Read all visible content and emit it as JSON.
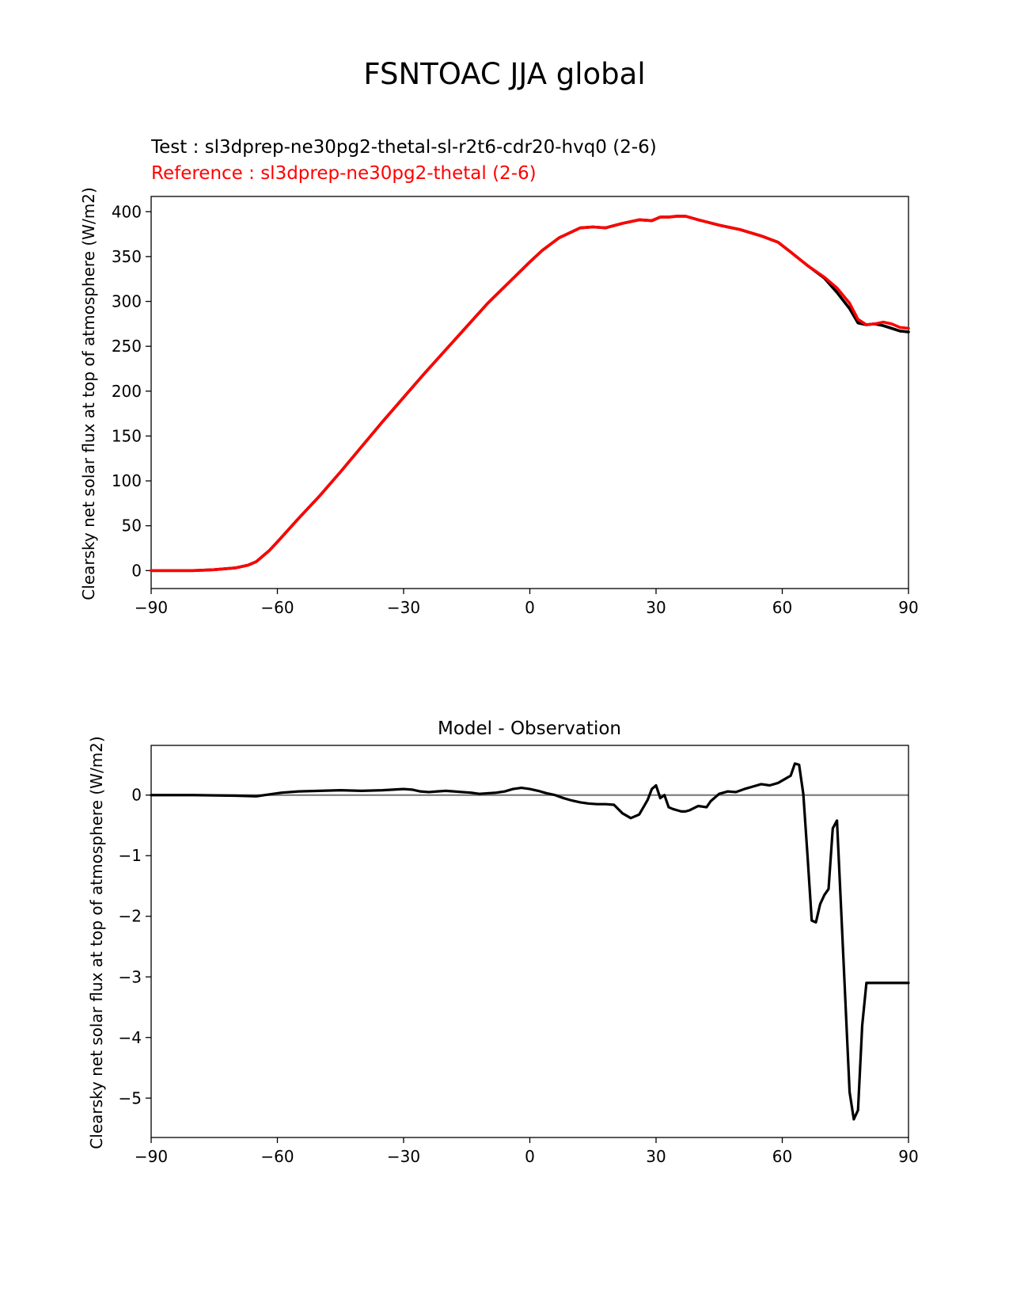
{
  "figure_title": "FSNTOAC JJA global",
  "legend": {
    "test_label": "Test : sl3dprep-ne30pg2-thetal-sl-r2t6-cdr20-hvq0 (2-6)",
    "reference_label": "Reference : sl3dprep-ne30pg2-thetal (2-6)"
  },
  "colors": {
    "test": "#000000",
    "reference": "#ff0000",
    "zero_line": "#808080"
  },
  "chart_data": [
    {
      "type": "line",
      "title": "",
      "xlabel": "",
      "ylabel": "Clearsky net solar flux at top of atmosphere (W/m2)",
      "xlim": [
        -90,
        90
      ],
      "ylim": [
        -20,
        417
      ],
      "xticks": [
        -90,
        -60,
        -30,
        0,
        30,
        60,
        90
      ],
      "xtick_labels": [
        "−90",
        "−60",
        "−30",
        "0",
        "30",
        "60",
        "90"
      ],
      "yticks": [
        0,
        50,
        100,
        150,
        200,
        250,
        300,
        350,
        400
      ],
      "ytick_labels": [
        "0",
        "50",
        "100",
        "150",
        "200",
        "250",
        "300",
        "350",
        "400"
      ],
      "x": [
        -90,
        -85,
        -80,
        -75,
        -70,
        -67,
        -65,
        -62,
        -60,
        -55,
        -50,
        -45,
        -40,
        -35,
        -30,
        -25,
        -20,
        -15,
        -10,
        -5,
        0,
        3,
        7,
        12,
        15,
        18,
        22,
        26,
        29,
        31,
        33,
        35,
        37,
        40,
        45,
        50,
        55,
        59,
        62,
        66,
        70,
        73,
        76,
        78,
        80,
        82,
        84,
        86,
        88,
        90
      ],
      "series": [
        {
          "name": "Test",
          "color": "#000000",
          "values": [
            0,
            0,
            0,
            1,
            3,
            6,
            10,
            22,
            32,
            58,
            83,
            110,
            138,
            166,
            193,
            220,
            246,
            272,
            298,
            321,
            344,
            357,
            371,
            382,
            383,
            382,
            387,
            391,
            390,
            394,
            394,
            395,
            395,
            391,
            385,
            380,
            373,
            366,
            355,
            340,
            326,
            310,
            292,
            276,
            274,
            275,
            273,
            270,
            267,
            266
          ]
        },
        {
          "name": "Reference",
          "color": "#ff0000",
          "values": [
            0,
            0,
            0,
            1,
            3,
            6,
            10,
            22,
            32,
            58,
            83,
            110,
            138,
            166,
            193,
            220,
            246,
            272,
            298,
            321,
            344,
            357,
            371,
            382,
            383,
            382,
            387,
            391,
            390,
            394,
            394,
            395,
            395,
            391,
            385,
            380,
            373,
            366,
            355,
            340,
            327,
            315,
            298,
            280,
            274,
            275,
            277,
            275,
            271,
            270
          ]
        }
      ]
    },
    {
      "type": "line",
      "title": "Model - Observation",
      "xlabel": "",
      "ylabel": "Clearsky net solar flux at top of atmosphere (W/m2)",
      "xlim": [
        -90,
        90
      ],
      "ylim": [
        -5.65,
        0.82
      ],
      "xticks": [
        -90,
        -60,
        -30,
        0,
        30,
        60,
        90
      ],
      "xtick_labels": [
        "−90",
        "−60",
        "−30",
        "0",
        "30",
        "60",
        "90"
      ],
      "yticks": [
        0,
        -1,
        -2,
        -3,
        -4,
        -5
      ],
      "ytick_labels": [
        "0",
        "−1",
        "−2",
        "−3",
        "−4",
        "−5"
      ],
      "zero_line": 0,
      "x": [
        -90,
        -80,
        -70,
        -65,
        -62,
        -59,
        -55,
        -50,
        -45,
        -40,
        -35,
        -30,
        -28,
        -26,
        -24,
        -22,
        -20,
        -18,
        -16,
        -14,
        -12,
        -10,
        -8,
        -6,
        -4,
        -2,
        0,
        2,
        4,
        6,
        8,
        10,
        12,
        14,
        16,
        18,
        20,
        22,
        24,
        26,
        28,
        29,
        30,
        31,
        32,
        33,
        34,
        35,
        36,
        37,
        38,
        40,
        42,
        43,
        45,
        47,
        49,
        51,
        53,
        55,
        57,
        59,
        61,
        62,
        63,
        64,
        65,
        66,
        67,
        68,
        69,
        70,
        71,
        72,
        73,
        74,
        75,
        76,
        77,
        78,
        79,
        80,
        81,
        82,
        83,
        84,
        85,
        86,
        87,
        88,
        89,
        90
      ],
      "series": [
        {
          "name": "Model - Observation",
          "color": "#000000",
          "values": [
            0.0,
            0.0,
            -0.01,
            -0.02,
            0.01,
            0.04,
            0.06,
            0.07,
            0.08,
            0.07,
            0.08,
            0.1,
            0.09,
            0.06,
            0.05,
            0.06,
            0.07,
            0.06,
            0.05,
            0.04,
            0.02,
            0.03,
            0.04,
            0.06,
            0.1,
            0.12,
            0.1,
            0.07,
            0.03,
            0.0,
            -0.05,
            -0.09,
            -0.12,
            -0.14,
            -0.15,
            -0.15,
            -0.16,
            -0.3,
            -0.38,
            -0.32,
            -0.08,
            0.1,
            0.16,
            -0.05,
            0.0,
            -0.2,
            -0.23,
            -0.25,
            -0.27,
            -0.27,
            -0.25,
            -0.18,
            -0.2,
            -0.1,
            0.02,
            0.06,
            0.05,
            0.1,
            0.14,
            0.18,
            0.16,
            0.2,
            0.28,
            0.32,
            0.52,
            0.5,
            0.02,
            -1.0,
            -2.07,
            -2.1,
            -1.8,
            -1.65,
            -1.55,
            -0.55,
            -0.42,
            -1.9,
            -3.4,
            -4.9,
            -5.35,
            -5.2,
            -3.8,
            -3.1,
            -3.1,
            -3.1,
            -3.1,
            -3.1,
            -3.1,
            -3.1,
            -3.1,
            -3.1,
            -3.1,
            -3.1
          ]
        }
      ]
    }
  ]
}
